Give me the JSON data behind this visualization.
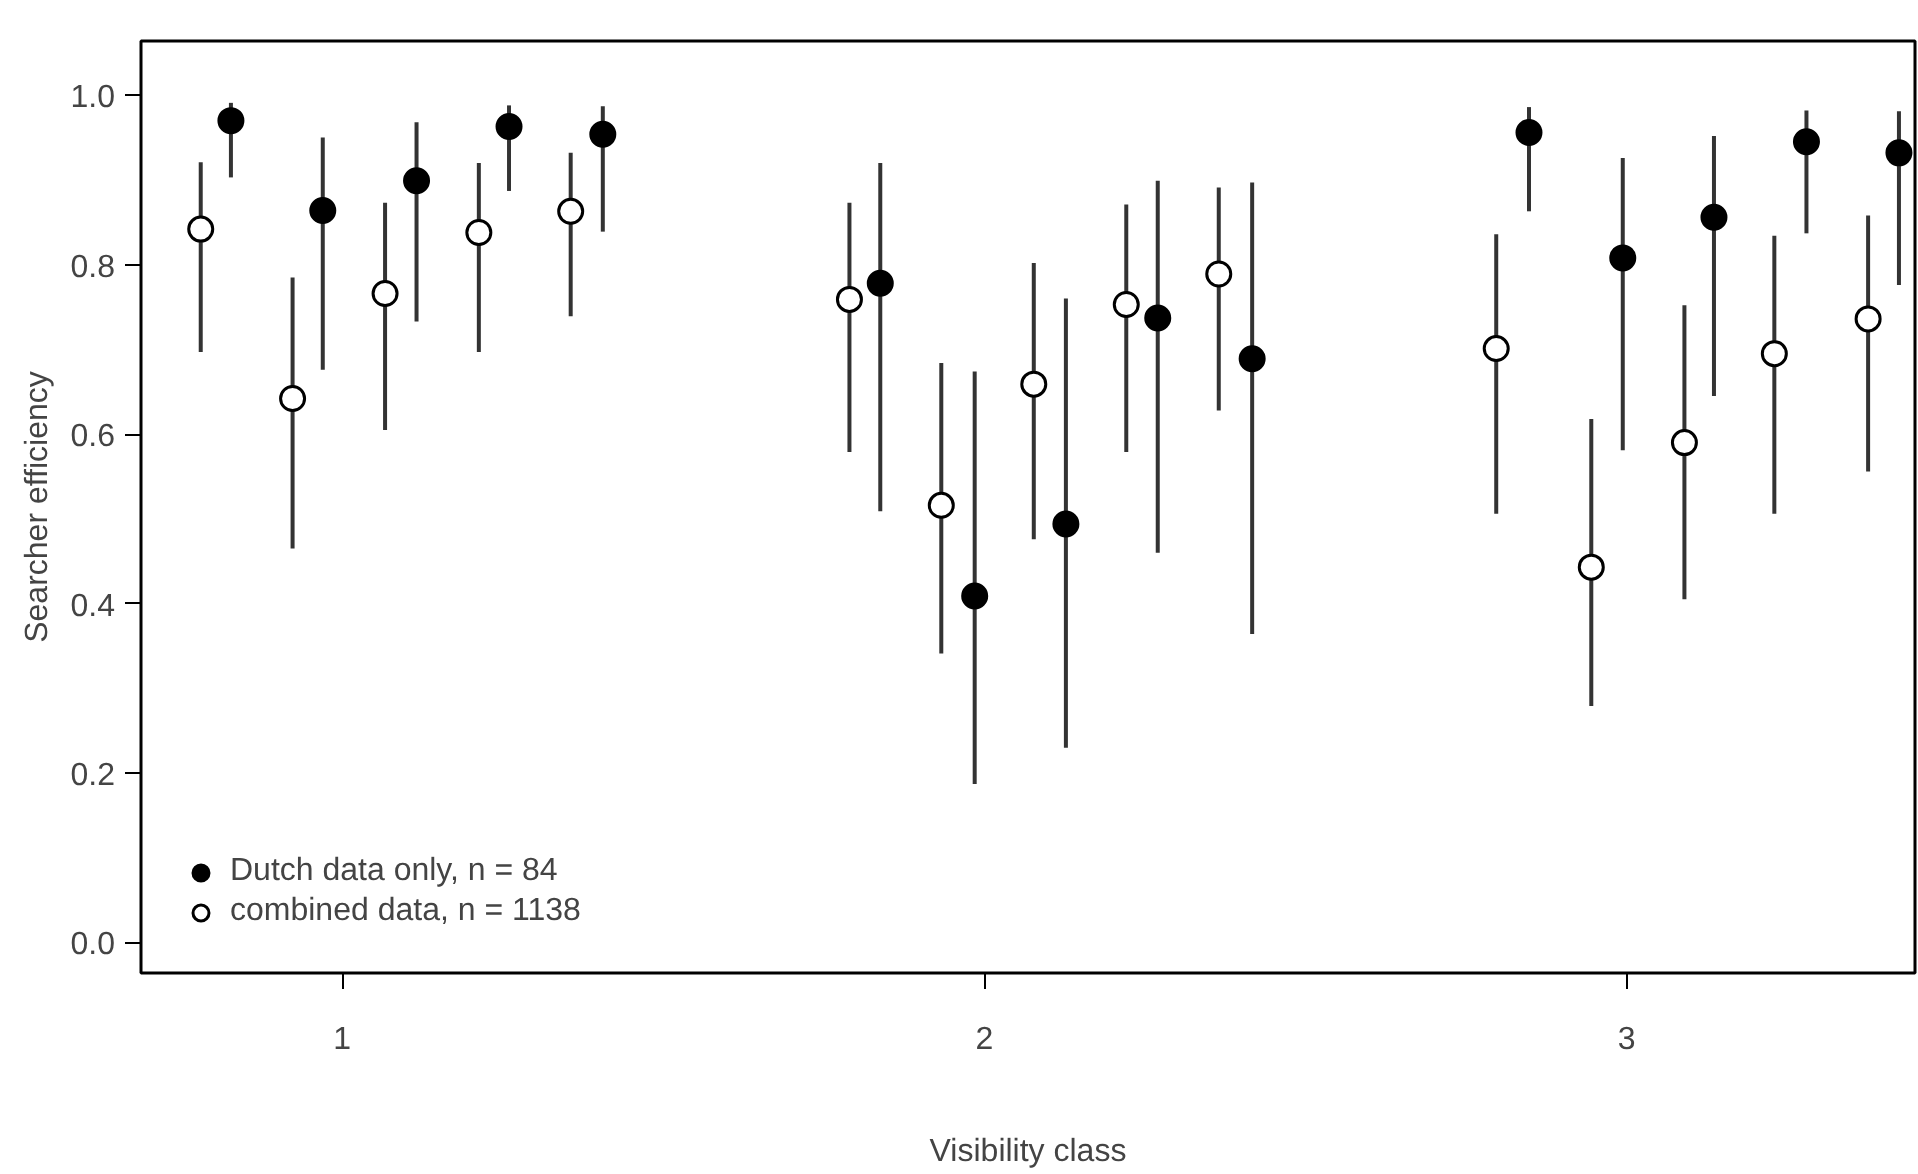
{
  "chart_data": {
    "type": "scatter",
    "xlabel": "Visibility class",
    "ylabel": "Searcher efficiency",
    "xlim": [
      0.687,
      3.449
    ],
    "ylim": [
      -0.036,
      1.064
    ],
    "xticks": [
      1,
      2,
      3
    ],
    "yticks": [
      {
        "value": 0,
        "label": "0.0"
      },
      0.2,
      0.4,
      0.6,
      0.8,
      {
        "value": 1,
        "label": "1.0"
      }
    ],
    "grid": false,
    "legend": "bottom left",
    "marker": "circle",
    "series": [
      {
        "name": "Dutch data only, n = 84",
        "color": "#000000",
        "x": [
          0.827,
          0.97,
          1.116,
          1.26,
          1.406,
          1.838,
          1.985,
          2.127,
          2.27,
          2.417,
          2.848,
          2.994,
          3.136,
          3.28,
          3.424
        ],
        "values": [
          0.97,
          0.864,
          0.899,
          0.963,
          0.954,
          0.778,
          0.409,
          0.494,
          0.737,
          0.689,
          0.956,
          0.808,
          0.856,
          0.945,
          0.932
        ],
        "errors": [
          [
            0.903,
            0.991
          ],
          [
            0.676,
            0.95
          ],
          [
            0.733,
            0.968
          ],
          [
            0.887,
            0.988
          ],
          [
            0.839,
            0.987
          ],
          [
            0.509,
            0.92
          ],
          [
            0.187,
            0.674
          ],
          [
            0.23,
            0.76
          ],
          [
            0.46,
            0.899
          ],
          [
            0.364,
            0.897
          ],
          [
            0.863,
            0.986
          ],
          [
            0.581,
            0.926
          ],
          [
            0.645,
            0.952
          ],
          [
            0.837,
            0.982
          ],
          [
            0.776,
            0.981
          ]
        ]
      },
      {
        "name": "combined data, n = 1138",
        "color": "#ffffff",
        "x": [
          0.78,
          0.923,
          1.067,
          1.213,
          1.356,
          1.79,
          1.933,
          2.077,
          2.221,
          2.365,
          2.797,
          2.945,
          3.09,
          3.23,
          3.376
        ],
        "values": [
          0.842,
          0.642,
          0.766,
          0.838,
          0.863,
          0.759,
          0.516,
          0.659,
          0.753,
          0.789,
          0.701,
          0.443,
          0.59,
          0.695,
          0.736
        ],
        "errors": [
          [
            0.697,
            0.921
          ],
          [
            0.465,
            0.785
          ],
          [
            0.605,
            0.873
          ],
          [
            0.697,
            0.92
          ],
          [
            0.739,
            0.932
          ],
          [
            0.579,
            0.873
          ],
          [
            0.341,
            0.684
          ],
          [
            0.476,
            0.802
          ],
          [
            0.579,
            0.871
          ],
          [
            0.628,
            0.891
          ],
          [
            0.506,
            0.836
          ],
          [
            0.279,
            0.618
          ],
          [
            0.405,
            0.752
          ],
          [
            0.506,
            0.834
          ],
          [
            0.556,
            0.858
          ]
        ]
      }
    ]
  }
}
